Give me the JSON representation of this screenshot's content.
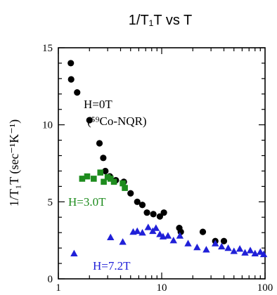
{
  "chart_data": {
    "type": "scatter",
    "title": "1/T₁T vs T",
    "ylabel": "1/T₁T (sec⁻¹K⁻¹)",
    "xlabel": "",
    "x_scale": "log",
    "xlim": [
      1,
      100
    ],
    "ylim": [
      0,
      15
    ],
    "x_ticks": [
      1,
      10,
      100
    ],
    "x_tick_labels": [
      "1",
      "10",
      "100"
    ],
    "y_ticks": [
      0,
      5,
      10,
      15
    ],
    "y_tick_labels": [
      "0",
      "5",
      "10",
      "15"
    ],
    "grid": false,
    "legend": "none",
    "annotations": [
      {
        "text": "H=0T",
        "series": "H=0T"
      },
      {
        "text": "(⁵⁹Co-NQR)",
        "series": "H=0T"
      },
      {
        "text": "H=3.0T",
        "series": "H=3.0T"
      },
      {
        "text": "H=7.2T",
        "series": "H=7.2T"
      }
    ],
    "series": [
      {
        "name": "H=0T",
        "marker": "circle",
        "color": "#000000",
        "points": [
          [
            1.32,
            14.0
          ],
          [
            1.33,
            12.95
          ],
          [
            1.52,
            12.1
          ],
          [
            2.0,
            10.3
          ],
          [
            2.5,
            8.8
          ],
          [
            2.72,
            7.85
          ],
          [
            2.85,
            7.0
          ],
          [
            3.15,
            6.65
          ],
          [
            3.6,
            6.4
          ],
          [
            4.3,
            6.3
          ],
          [
            5.0,
            5.55
          ],
          [
            5.8,
            5.0
          ],
          [
            6.5,
            4.8
          ],
          [
            7.2,
            4.3
          ],
          [
            8.3,
            4.2
          ],
          [
            9.6,
            4.05
          ],
          [
            10.5,
            4.3
          ],
          [
            14.8,
            3.3
          ],
          [
            15.3,
            3.05
          ],
          [
            25.0,
            3.05
          ],
          [
            33.0,
            2.45
          ],
          [
            40.0,
            2.45
          ]
        ]
      },
      {
        "name": "H=3.0T",
        "marker": "square",
        "color": "#1e8c1e",
        "points": [
          [
            1.7,
            6.5
          ],
          [
            1.9,
            6.65
          ],
          [
            2.2,
            6.5
          ],
          [
            2.55,
            6.9
          ],
          [
            2.75,
            6.3
          ],
          [
            3.0,
            6.6
          ],
          [
            3.2,
            6.5
          ],
          [
            3.45,
            6.3
          ],
          [
            4.2,
            6.2
          ],
          [
            4.4,
            5.9
          ]
        ]
      },
      {
        "name": "H=7.2T",
        "marker": "triangle",
        "color": "#2020d8",
        "points": [
          [
            1.42,
            1.65
          ],
          [
            3.2,
            2.7
          ],
          [
            4.2,
            2.4
          ],
          [
            5.3,
            3.05
          ],
          [
            5.8,
            3.1
          ],
          [
            6.5,
            3.0
          ],
          [
            7.4,
            3.35
          ],
          [
            8.2,
            3.1
          ],
          [
            8.8,
            3.3
          ],
          [
            9.6,
            2.9
          ],
          [
            10.3,
            2.75
          ],
          [
            11.5,
            2.8
          ],
          [
            13.0,
            2.5
          ],
          [
            15.0,
            2.8
          ],
          [
            18.0,
            2.3
          ],
          [
            22.0,
            2.05
          ],
          [
            27.0,
            1.9
          ],
          [
            33.0,
            2.3
          ],
          [
            38.0,
            2.1
          ],
          [
            44.0,
            2.0
          ],
          [
            50.0,
            1.8
          ],
          [
            57.0,
            1.95
          ],
          [
            64.0,
            1.7
          ],
          [
            72.0,
            1.85
          ],
          [
            80.0,
            1.65
          ],
          [
            90.0,
            1.75
          ],
          [
            97.0,
            1.6
          ]
        ]
      }
    ]
  }
}
